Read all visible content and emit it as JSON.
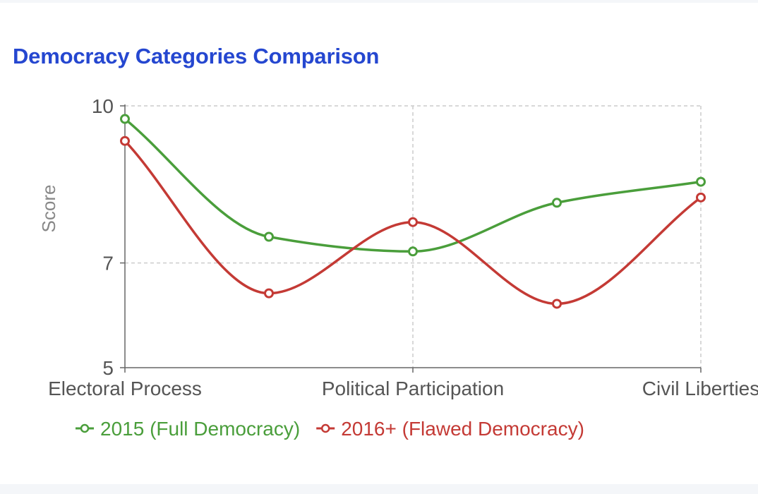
{
  "chart_data": {
    "type": "line",
    "title": "Democracy Categories Comparison",
    "ylabel": "Score",
    "xlabel": "",
    "ylim": [
      5,
      10
    ],
    "y_ticks": [
      5,
      7,
      10
    ],
    "x_tick_labels": [
      "Electoral Process",
      "Political Participation",
      "Civil Liberties"
    ],
    "grid": true,
    "legend_position": "bottom",
    "curve": "smooth",
    "series": [
      {
        "name": "2015 (Full Democracy)",
        "color": "#4a9e3b",
        "values": [
          9.75,
          7.5,
          7.22,
          8.15,
          8.55
        ]
      },
      {
        "name": "2016+ (Flawed Democracy)",
        "color": "#c43a35",
        "values": [
          9.33,
          6.42,
          7.78,
          6.22,
          8.25
        ]
      }
    ]
  }
}
